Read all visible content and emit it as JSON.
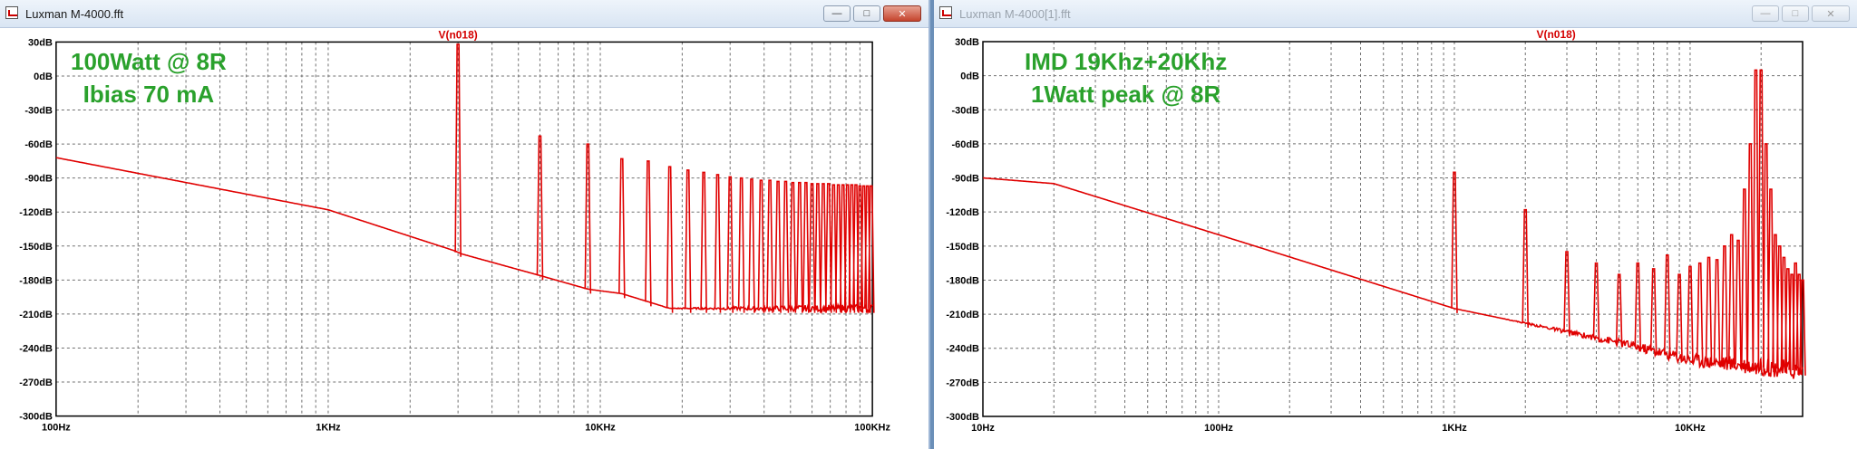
{
  "windows": [
    {
      "title": "Luxman M-4000.fft",
      "trace_label": "V(n018)",
      "annotation": [
        "100Watt @ 8R",
        "Ibias 70 mA"
      ],
      "x_tick_labels": [
        "100Hz",
        "1KHz",
        "10KHz",
        "100KHz"
      ],
      "y_tick_labels": [
        "30dB",
        "0dB",
        "-30dB",
        "-60dB",
        "-90dB",
        "-120dB",
        "-150dB",
        "-180dB",
        "-210dB",
        "-240dB",
        "-270dB",
        "-300dB"
      ]
    },
    {
      "title": "Luxman M-4000[1].fft",
      "trace_label": "V(n018)",
      "annotation": [
        "IMD 19Khz+20Khz",
        "1Watt peak @ 8R"
      ],
      "x_tick_labels": [
        "10Hz",
        "100Hz",
        "1KHz",
        "10KHz"
      ],
      "y_tick_labels": [
        "30dB",
        "0dB",
        "-30dB",
        "-60dB",
        "-90dB",
        "-120dB",
        "-150dB",
        "-180dB",
        "-210dB",
        "-240dB",
        "-270dB",
        "-300dB"
      ]
    }
  ],
  "chart_data": [
    {
      "type": "line",
      "title": "V(n018)",
      "x_scale": "log",
      "xlim": [
        100,
        100000
      ],
      "ylim": [
        -300,
        30
      ],
      "grid": true,
      "series": [
        {
          "name": "V(n018)",
          "color": "#e00000",
          "floor": [
            [
              100,
              -72
            ],
            [
              1000,
              -118
            ],
            [
              2900,
              -154
            ],
            [
              3100,
              -157
            ],
            [
              6000,
              -176
            ],
            [
              9000,
              -188
            ],
            [
              12000,
              -192
            ],
            [
              18000,
              -205
            ],
            [
              100000,
              -205
            ]
          ],
          "peaks": [
            [
              3000,
              28
            ],
            [
              6000,
              -53
            ],
            [
              9000,
              -60
            ],
            [
              12000,
              -73
            ],
            [
              15000,
              -75
            ],
            [
              18000,
              -80
            ],
            [
              21000,
              -83
            ],
            [
              24000,
              -85
            ],
            [
              27000,
              -87
            ],
            [
              30000,
              -89
            ],
            [
              33000,
              -90
            ],
            [
              36000,
              -91
            ],
            [
              39000,
              -92
            ],
            [
              42000,
              -92
            ],
            [
              45000,
              -93
            ],
            [
              48000,
              -93
            ],
            [
              51000,
              -94
            ],
            [
              54000,
              -94
            ],
            [
              57000,
              -94
            ],
            [
              60000,
              -95
            ],
            [
              63000,
              -95
            ],
            [
              66000,
              -95
            ],
            [
              69000,
              -95
            ],
            [
              72000,
              -96
            ],
            [
              75000,
              -96
            ],
            [
              78000,
              -96
            ],
            [
              81000,
              -96
            ],
            [
              84000,
              -96
            ],
            [
              87000,
              -96
            ],
            [
              90000,
              -97
            ],
            [
              93000,
              -97
            ],
            [
              96000,
              -97
            ],
            [
              99000,
              -97
            ]
          ]
        }
      ]
    },
    {
      "type": "line",
      "title": "V(n018)",
      "x_scale": "log",
      "xlim": [
        10,
        30000
      ],
      "ylim": [
        -300,
        30
      ],
      "grid": true,
      "series": [
        {
          "name": "V(n018)",
          "color": "#e00000",
          "floor": [
            [
              10,
              -90
            ],
            [
              20,
              -95
            ],
            [
              100,
              -140
            ],
            [
              1000,
              -205
            ],
            [
              5000,
              -235
            ],
            [
              10000,
              -250
            ],
            [
              30000,
              -260
            ]
          ],
          "peaks": [
            [
              1000,
              -85
            ],
            [
              2000,
              -118
            ],
            [
              3000,
              -155
            ],
            [
              4000,
              -165
            ],
            [
              5000,
              -175
            ],
            [
              6000,
              -165
            ],
            [
              7000,
              -170
            ],
            [
              8000,
              -158
            ],
            [
              9000,
              -175
            ],
            [
              10000,
              -168
            ],
            [
              11000,
              -165
            ],
            [
              12000,
              -160
            ],
            [
              13000,
              -162
            ],
            [
              14000,
              -150
            ],
            [
              15000,
              -140
            ],
            [
              16000,
              -145
            ],
            [
              17000,
              -100
            ],
            [
              18000,
              -60
            ],
            [
              19000,
              5
            ],
            [
              20000,
              5
            ],
            [
              21000,
              -60
            ],
            [
              22000,
              -100
            ],
            [
              23000,
              -140
            ],
            [
              24000,
              -150
            ],
            [
              25000,
              -160
            ],
            [
              26000,
              -170
            ],
            [
              27000,
              -175
            ],
            [
              28000,
              -165
            ],
            [
              29000,
              -175
            ],
            [
              30000,
              -180
            ]
          ]
        }
      ]
    }
  ]
}
